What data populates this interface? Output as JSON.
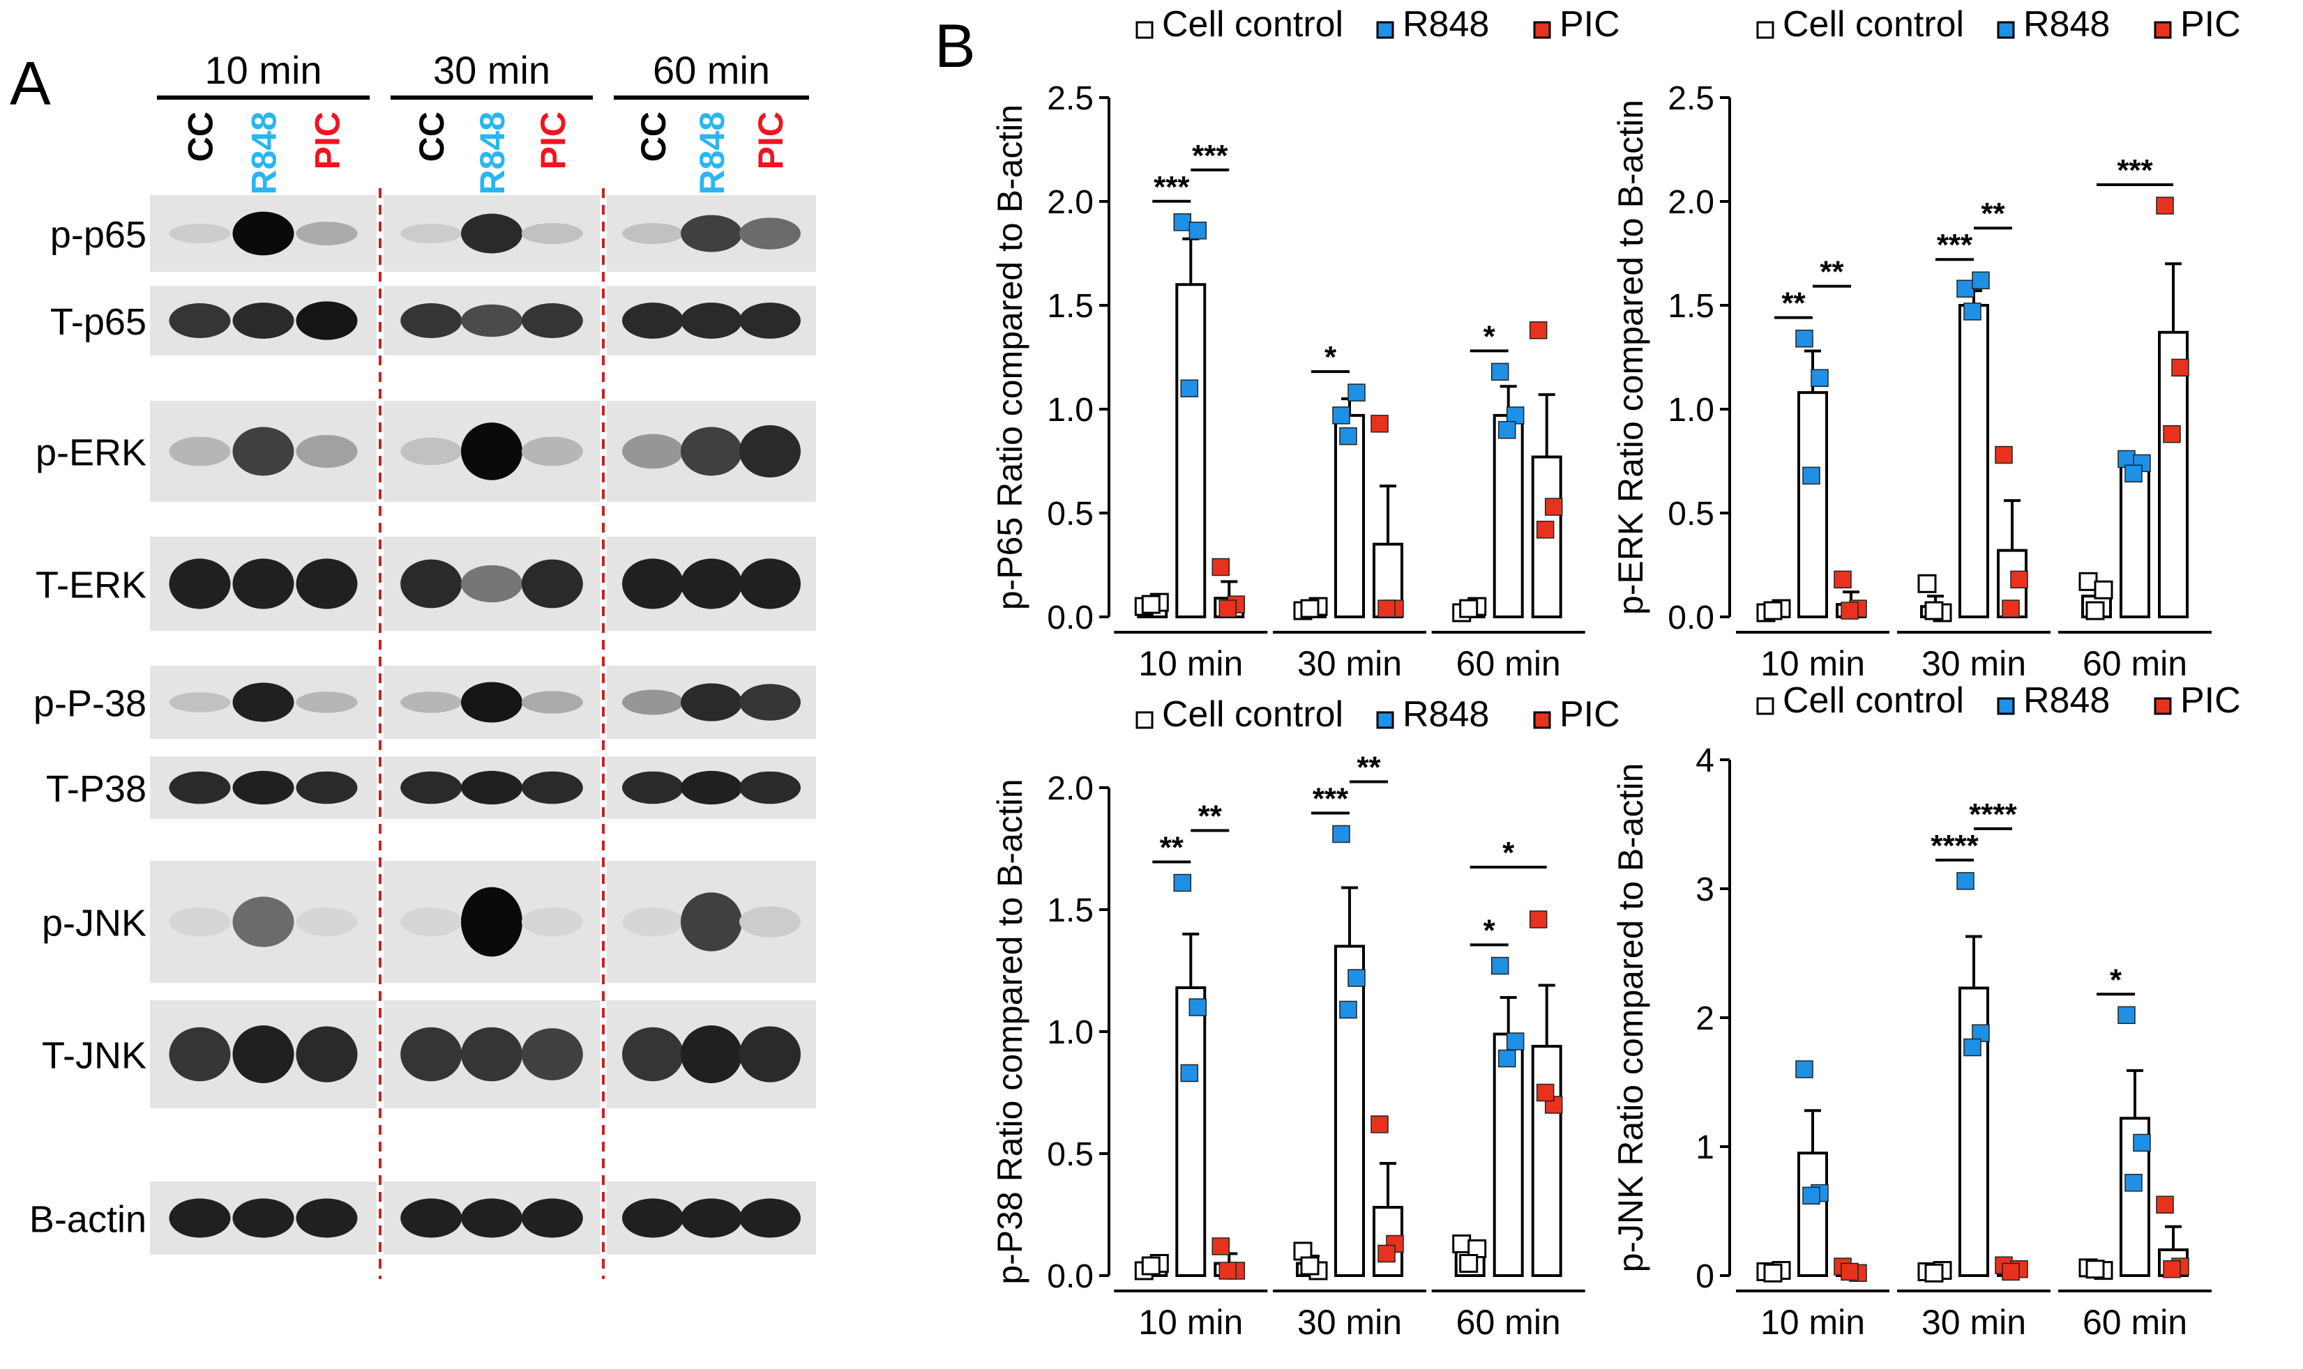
{
  "figure": {
    "panel_a_label": "A",
    "panel_b_label": "B",
    "colors": {
      "cc": "#ffffff",
      "r848": "#1e90e6",
      "pic": "#e8321e",
      "r848_text": "#29b6f0",
      "pic_text": "#f0141e",
      "divider": "#cc2020"
    }
  },
  "blot": {
    "timepoints": [
      "10 min",
      "30 min",
      "60 min"
    ],
    "lanes": [
      {
        "label": "CC",
        "color": "#000000"
      },
      {
        "label": "R848",
        "color": "#29b6f0"
      },
      {
        "label": "PIC",
        "color": "#f0141e"
      }
    ],
    "rows": [
      {
        "label": "p-p65",
        "intensity": [
          0.1,
          1.0,
          0.25,
          0.1,
          0.85,
          0.15,
          0.15,
          0.75,
          0.55
        ]
      },
      {
        "label": "T-p65",
        "intensity": [
          0.8,
          0.85,
          0.95,
          0.8,
          0.7,
          0.8,
          0.85,
          0.85,
          0.85
        ]
      },
      {
        "label": "p-ERK",
        "intensity": [
          0.2,
          0.75,
          0.3,
          0.15,
          1.0,
          0.2,
          0.35,
          0.75,
          0.85
        ]
      },
      {
        "label": "T-ERK",
        "intensity": [
          0.9,
          0.9,
          0.9,
          0.85,
          0.5,
          0.85,
          0.9,
          0.9,
          0.9
        ]
      },
      {
        "label": "p-P-38",
        "intensity": [
          0.15,
          0.9,
          0.2,
          0.2,
          0.95,
          0.25,
          0.35,
          0.85,
          0.8
        ]
      },
      {
        "label": "T-P38",
        "intensity": [
          0.85,
          0.9,
          0.85,
          0.85,
          0.9,
          0.85,
          0.85,
          0.9,
          0.85
        ]
      },
      {
        "label": "p-JNK",
        "intensity": [
          0.05,
          0.55,
          0.05,
          0.05,
          1.0,
          0.05,
          0.05,
          0.75,
          0.1
        ]
      },
      {
        "label": "T-JNK",
        "intensity": [
          0.8,
          0.9,
          0.85,
          0.8,
          0.8,
          0.75,
          0.8,
          0.9,
          0.85
        ]
      },
      {
        "label": "B-actin",
        "intensity": [
          0.9,
          0.9,
          0.9,
          0.9,
          0.9,
          0.9,
          0.9,
          0.9,
          0.9
        ]
      }
    ]
  },
  "chart_data": [
    {
      "type": "bar",
      "ylabel": "p-P65 Ratio compared to B-actin",
      "ylim": [
        0,
        2.5
      ],
      "yticks": [
        "0.0",
        "0.5",
        "1.0",
        "1.5",
        "2.0",
        "2.5"
      ],
      "categories": [
        "10 min",
        "30 min",
        "60 min"
      ],
      "legend": [
        "Cell control",
        "R848",
        "PIC"
      ],
      "series": [
        {
          "name": "Cell control",
          "values": [
            0.06,
            0.04,
            0.04
          ],
          "errors": [
            0.02,
            0.02,
            0.02
          ],
          "points": [
            [
              0.05,
              0.07,
              0.06
            ],
            [
              0.03,
              0.05,
              0.04
            ],
            [
              0.02,
              0.05,
              0.04
            ]
          ]
        },
        {
          "name": "R848",
          "values": [
            1.6,
            0.97,
            0.97
          ],
          "errors": [
            0.22,
            0.08,
            0.14
          ],
          "points": [
            [
              1.9,
              1.86,
              1.1
            ],
            [
              0.97,
              1.08,
              0.87
            ],
            [
              1.18,
              0.97,
              0.9
            ]
          ]
        },
        {
          "name": "PIC",
          "values": [
            0.09,
            0.35,
            0.77
          ],
          "errors": [
            0.08,
            0.28,
            0.3
          ],
          "points": [
            [
              0.24,
              0.06,
              0.04
            ],
            [
              0.93,
              0.04,
              0.04
            ],
            [
              1.38,
              0.53,
              0.42
            ]
          ]
        }
      ],
      "significance": [
        {
          "group": 0,
          "from": 0,
          "to": 1,
          "label": "***"
        },
        {
          "group": 0,
          "from": 1,
          "to": 2,
          "label": "***"
        },
        {
          "group": 1,
          "from": 0,
          "to": 1,
          "label": "*"
        },
        {
          "group": 2,
          "from": 0,
          "to": 1,
          "label": "*"
        }
      ]
    },
    {
      "type": "bar",
      "ylabel": "p-ERK Ratio compared to B-actin",
      "ylim": [
        0,
        2.5
      ],
      "yticks": [
        "0.0",
        "0.5",
        "1.0",
        "1.5",
        "2.0",
        "2.5"
      ],
      "categories": [
        "10 min",
        "30 min",
        "60 min"
      ],
      "legend": [
        "Cell control",
        "R848",
        "PIC"
      ],
      "series": [
        {
          "name": "Cell control",
          "values": [
            0.03,
            0.05,
            0.1
          ],
          "errors": [
            0.02,
            0.05,
            0.05
          ],
          "points": [
            [
              0.02,
              0.04,
              0.03
            ],
            [
              0.16,
              0.02,
              0.03
            ],
            [
              0.17,
              0.13,
              0.03
            ]
          ]
        },
        {
          "name": "R848",
          "values": [
            1.08,
            1.5,
            0.73
          ],
          "errors": [
            0.2,
            0.07,
            0.03
          ],
          "points": [
            [
              1.34,
              1.15,
              0.68
            ],
            [
              1.58,
              1.62,
              1.47
            ],
            [
              0.76,
              0.74,
              0.69
            ]
          ]
        },
        {
          "name": "PIC",
          "values": [
            0.06,
            0.32,
            1.37
          ],
          "errors": [
            0.06,
            0.24,
            0.33
          ],
          "points": [
            [
              0.18,
              0.04,
              0.03
            ],
            [
              0.78,
              0.18,
              0.04
            ],
            [
              1.98,
              1.2,
              0.88
            ]
          ]
        }
      ],
      "significance": [
        {
          "group": 0,
          "from": 0,
          "to": 1,
          "label": "**"
        },
        {
          "group": 0,
          "from": 1,
          "to": 2,
          "label": "**"
        },
        {
          "group": 1,
          "from": 0,
          "to": 1,
          "label": "***"
        },
        {
          "group": 1,
          "from": 1,
          "to": 2,
          "label": "**"
        },
        {
          "group": 2,
          "from": 0,
          "to": 2,
          "label": "***"
        }
      ]
    },
    {
      "type": "bar",
      "ylabel": "p-P38 Ratio compared to B-actin",
      "ylim": [
        0,
        2.0
      ],
      "yticks": [
        "0.0",
        "0.5",
        "1.0",
        "1.5",
        "2.0"
      ],
      "categories": [
        "10 min",
        "30 min",
        "60 min"
      ],
      "legend": [
        "Cell control",
        "R848",
        "PIC"
      ],
      "series": [
        {
          "name": "Cell control",
          "values": [
            0.04,
            0.05,
            0.1
          ],
          "errors": [
            0.02,
            0.03,
            0.04
          ],
          "points": [
            [
              0.02,
              0.05,
              0.04
            ],
            [
              0.1,
              0.02,
              0.04
            ],
            [
              0.13,
              0.11,
              0.05
            ]
          ]
        },
        {
          "name": "R848",
          "values": [
            1.18,
            1.35,
            0.99
          ],
          "errors": [
            0.22,
            0.24,
            0.15
          ],
          "points": [
            [
              1.61,
              1.1,
              0.83
            ],
            [
              1.81,
              1.22,
              1.09
            ],
            [
              1.27,
              0.96,
              0.89
            ]
          ]
        },
        {
          "name": "PIC",
          "values": [
            0.05,
            0.28,
            0.94
          ],
          "errors": [
            0.04,
            0.18,
            0.25
          ],
          "points": [
            [
              0.12,
              0.02,
              0.02
            ],
            [
              0.62,
              0.13,
              0.09
            ],
            [
              1.46,
              0.7,
              0.75
            ]
          ]
        }
      ],
      "significance": [
        {
          "group": 0,
          "from": 0,
          "to": 1,
          "label": "**"
        },
        {
          "group": 0,
          "from": 1,
          "to": 2,
          "label": "**"
        },
        {
          "group": 1,
          "from": 0,
          "to": 1,
          "label": "***"
        },
        {
          "group": 1,
          "from": 1,
          "to": 2,
          "label": "**"
        },
        {
          "group": 2,
          "from": 0,
          "to": 1,
          "label": "*"
        },
        {
          "group": 2,
          "from": 0,
          "to": 2,
          "label": "*"
        }
      ]
    },
    {
      "type": "bar",
      "ylabel": "p-JNK Ratio compared to B-actin",
      "ylim": [
        0,
        4
      ],
      "yticks": [
        "0",
        "1",
        "2",
        "3",
        "4"
      ],
      "categories": [
        "10 min",
        "30 min",
        "60 min"
      ],
      "legend": [
        "Cell control",
        "R848",
        "PIC"
      ],
      "series": [
        {
          "name": "Cell control",
          "values": [
            0.03,
            0.03,
            0.05
          ],
          "errors": [
            0.02,
            0.02,
            0.03
          ],
          "points": [
            [
              0.03,
              0.04,
              0.02
            ],
            [
              0.03,
              0.04,
              0.02
            ],
            [
              0.06,
              0.04,
              0.05
            ]
          ]
        },
        {
          "name": "R848",
          "values": [
            0.95,
            2.23,
            1.22
          ],
          "errors": [
            0.33,
            0.4,
            0.37
          ],
          "points": [
            [
              1.6,
              0.64,
              0.62
            ],
            [
              3.06,
              1.88,
              1.77
            ],
            [
              2.02,
              1.03,
              0.72
            ]
          ]
        },
        {
          "name": "PIC",
          "values": [
            0.04,
            0.05,
            0.2
          ],
          "errors": [
            0.02,
            0.03,
            0.18
          ],
          "points": [
            [
              0.07,
              0.02,
              0.03
            ],
            [
              0.08,
              0.05,
              0.03
            ],
            [
              0.55,
              0.07,
              0.05
            ]
          ]
        }
      ],
      "significance": [
        {
          "group": 1,
          "from": 0,
          "to": 1,
          "label": "****"
        },
        {
          "group": 1,
          "from": 1,
          "to": 2,
          "label": "****"
        },
        {
          "group": 2,
          "from": 0,
          "to": 1,
          "label": "*"
        }
      ]
    }
  ]
}
